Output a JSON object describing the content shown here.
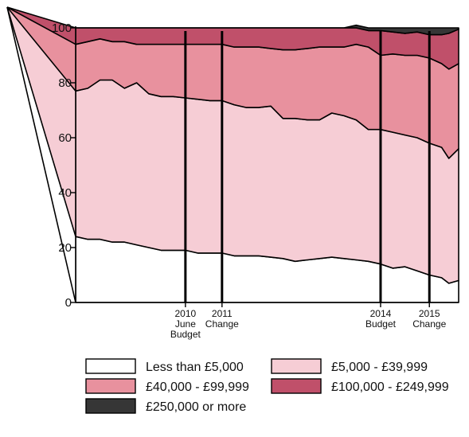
{
  "chart_data": {
    "type": "area",
    "stacked": true,
    "ylim": [
      0,
      100
    ],
    "yticks": [
      "0",
      "20",
      "40",
      "60",
      "80",
      "100"
    ],
    "xlim": [
      2007.75,
      2015.6
    ],
    "x": [
      2007.75,
      2008.0,
      2008.25,
      2008.5,
      2008.75,
      2009.0,
      2009.25,
      2009.5,
      2009.75,
      2010.0,
      2010.25,
      2010.5,
      2010.75,
      2011.0,
      2011.25,
      2011.5,
      2011.75,
      2012.0,
      2012.25,
      2012.5,
      2012.75,
      2013.0,
      2013.25,
      2013.5,
      2013.75,
      2014.0,
      2014.25,
      2014.5,
      2014.75,
      2015.0,
      2015.25,
      2015.4,
      2015.6
    ],
    "series": [
      {
        "name": "Less than £5,000",
        "color": "#ffffff",
        "values": [
          24,
          23,
          23,
          22,
          22,
          21,
          20,
          19,
          19,
          19,
          18,
          18,
          18,
          17,
          17,
          17,
          16.5,
          16,
          15,
          15.5,
          16,
          16.5,
          16,
          15.5,
          15,
          14,
          12.5,
          13,
          11.5,
          10,
          9,
          7,
          8
        ]
      },
      {
        "name": "£5,000 - £39,999",
        "color": "#f6cdd5",
        "values": [
          53,
          55,
          58,
          59,
          56,
          59,
          56,
          56,
          56,
          55.5,
          56,
          55.5,
          55.5,
          55,
          54,
          54,
          55,
          51,
          52,
          51,
          50.5,
          52.5,
          52,
          51,
          48,
          49,
          49.5,
          48,
          48.5,
          48,
          47.5,
          45.5,
          48
        ]
      },
      {
        "name": "£40,000 - £99,999",
        "color": "#e8919e",
        "values": [
          17,
          17,
          15,
          14,
          17,
          14,
          18,
          19,
          19,
          19.5,
          20,
          20.5,
          20.5,
          21,
          22,
          22,
          21,
          25,
          25,
          26,
          26.5,
          24,
          25,
          27.5,
          30,
          27,
          28.5,
          29,
          30,
          31,
          30.5,
          32.5,
          31
        ]
      },
      {
        "name": "£100,000 - £249,999",
        "color": "#c0506a",
        "values": [
          6,
          5,
          4,
          5,
          5,
          6,
          6,
          6,
          6,
          6,
          6,
          6,
          6,
          7,
          7,
          7,
          7.5,
          8,
          8,
          7.5,
          7,
          7,
          7,
          6,
          6,
          9,
          8,
          8,
          8.5,
          8.5,
          10.5,
          13,
          12.5
        ]
      },
      {
        "name": "£250,000 or more",
        "color": "#363636",
        "values": [
          0,
          0,
          0,
          0,
          0,
          0,
          0,
          0,
          0,
          0,
          0,
          0,
          0,
          0,
          0,
          0,
          0,
          0,
          0,
          0,
          0,
          0,
          0,
          1,
          1,
          1,
          1.5,
          2,
          1.5,
          2.5,
          2.5,
          2,
          0.5
        ]
      }
    ],
    "events": [
      {
        "x": 2010.0,
        "lines": [
          "2010",
          "June",
          "Budget"
        ]
      },
      {
        "x": 2010.75,
        "lines": [
          "2011",
          "Change"
        ]
      },
      {
        "x": 2014.0,
        "lines": [
          "2014",
          "Budget"
        ]
      },
      {
        "x": 2015.0,
        "lines": [
          "2015",
          "Change"
        ]
      }
    ],
    "legend_position": "bottom"
  }
}
